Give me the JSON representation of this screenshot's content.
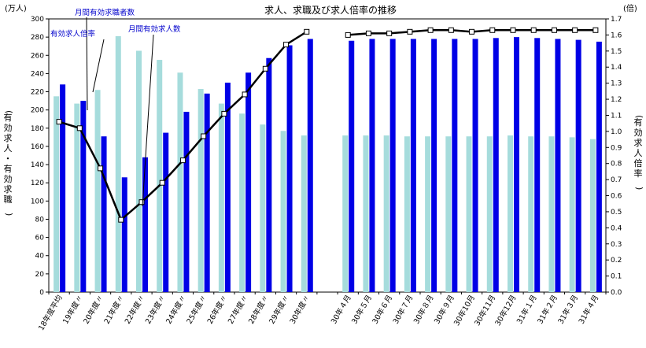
{
  "chart_data": {
    "type": "bar",
    "title": "求人、求職及び求人倍率の推移",
    "left_unit": "(万人)",
    "right_unit": "(倍)",
    "left_axis_title": "(有効求人・有効求職)",
    "right_axis_title": "(有効求人倍率)",
    "left_ylim": [
      0,
      300
    ],
    "left_ticks": [
      "0",
      "20",
      "40",
      "60",
      "80",
      "100",
      "120",
      "140",
      "160",
      "180",
      "200",
      "220",
      "240",
      "260",
      "280",
      "300"
    ],
    "right_ylim": [
      0,
      1.7
    ],
    "right_ticks": [
      "0.0",
      "0.1",
      "0.2",
      "0.3",
      "0.4",
      "0.5",
      "0.6",
      "0.7",
      "0.8",
      "0.9",
      "1.0",
      "1.1",
      "1.2",
      "1.3",
      "1.4",
      "1.5",
      "1.6",
      "1.7"
    ],
    "categories": [
      "18年度平均",
      "19年度〃",
      "20年度〃",
      "21年度〃",
      "22年度〃",
      "23年度〃",
      "24年度〃",
      "25年度〃",
      "26年度〃",
      "27年度〃",
      "28年度〃",
      "29年度〃",
      "30年度〃",
      "",
      "30年４月",
      "30年５月",
      "30年６月",
      "30年７月",
      "30年８月",
      "30年９月",
      "30年10月",
      "30年11月",
      "30年12月",
      "31年１月",
      "31年２月",
      "31年３月",
      "31年４月"
    ],
    "series": [
      {
        "name": "月間有効求職者数",
        "color": "#a6dcdc",
        "axis": "left",
        "values": [
          215,
          207,
          222,
          281,
          265,
          255,
          241,
          223,
          207,
          196,
          184,
          177,
          172,
          null,
          172,
          172,
          172,
          171,
          171,
          171,
          171,
          171,
          172,
          171,
          171,
          170,
          168
        ]
      },
      {
        "name": "月間有効求人数",
        "color": "#0000e6",
        "axis": "left",
        "values": [
          228,
          210,
          171,
          126,
          148,
          175,
          198,
          218,
          230,
          241,
          257,
          271,
          278,
          null,
          276,
          278,
          278,
          278,
          278,
          278,
          278,
          279,
          280,
          279,
          278,
          277,
          275
        ]
      },
      {
        "name": "有効求人倍率",
        "color": "#000000",
        "axis": "right",
        "type": "line",
        "values": [
          1.06,
          1.02,
          0.77,
          0.45,
          0.56,
          0.68,
          0.82,
          0.97,
          1.11,
          1.23,
          1.39,
          1.54,
          1.62,
          null,
          1.6,
          1.61,
          1.61,
          1.62,
          1.63,
          1.63,
          1.62,
          1.63,
          1.63,
          1.63,
          1.63,
          1.63,
          1.63
        ]
      }
    ],
    "annotations": [
      "月間有効求職者数",
      "有効求人倍率",
      "月間有効求人数"
    ],
    "grid": false
  }
}
